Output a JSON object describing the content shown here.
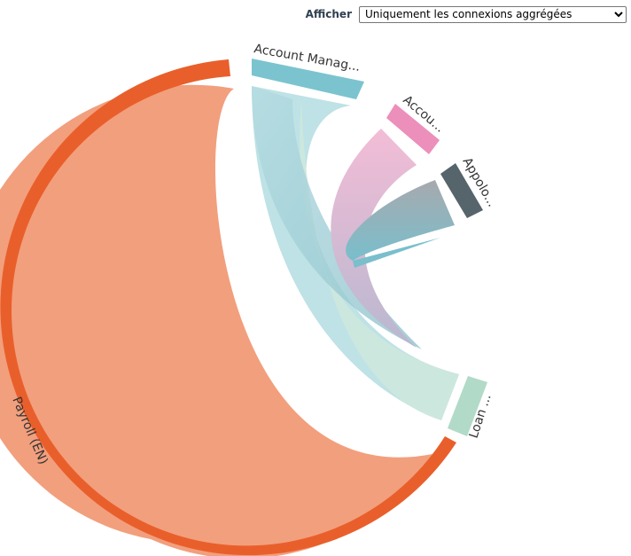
{
  "toolbar": {
    "label": "Afficher",
    "select_value": "Uniquement les connexions aggrégées"
  },
  "chart_data": {
    "type": "chord",
    "groups": [
      {
        "id": "account_manag",
        "label": "Account Manag...",
        "color": "#7bc4cf",
        "ribbon_color": "#b8dfe3"
      },
      {
        "id": "accou",
        "label": "Accou...",
        "color": "#ec8fba",
        "ribbon_color": "#f3bcd6"
      },
      {
        "id": "appolo",
        "label": "Appolo...",
        "color": "#56646c",
        "ribbon_color": "#9ea5aa"
      },
      {
        "id": "loan",
        "label": "Loan ...",
        "color": "#b2dac8",
        "ribbon_color": "#cfe8dd"
      },
      {
        "id": "payroll",
        "label": "Payroll (EN)",
        "color": "#e95f2b",
        "ribbon_color": "#f29f7d"
      }
    ]
  }
}
